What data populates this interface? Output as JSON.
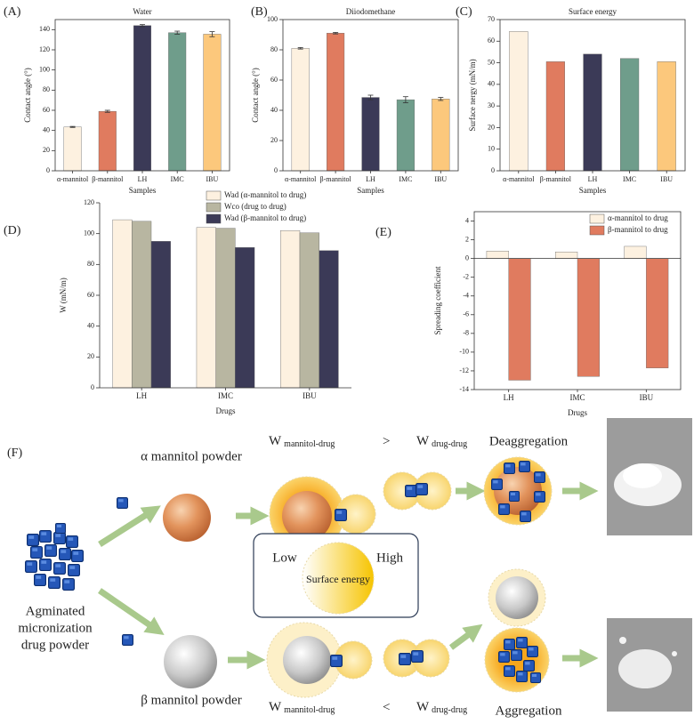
{
  "chart_data": [
    {
      "type": "bar",
      "label": "(A)",
      "title": "Water",
      "y_label": "Contact angle (°)",
      "x_label": "Samples",
      "categories": [
        "α-mannitol",
        "β-mannitol",
        "LH",
        "IMC",
        "IBU"
      ],
      "values": [
        43.5,
        59,
        144,
        137,
        135.5
      ],
      "errors": [
        0.5,
        1,
        1,
        1.5,
        2.5
      ],
      "colors": [
        "#fdf1e0",
        "#e07b5f",
        "#3b3a57",
        "#6f9d8b",
        "#fcc87c"
      ],
      "ylim": [
        0,
        150
      ],
      "yticks": [
        0,
        20,
        40,
        60,
        80,
        100,
        120,
        140
      ]
    },
    {
      "type": "bar",
      "label": "(B)",
      "title": "Diiodomethane",
      "y_label": "Contact angle (°)",
      "x_label": "Samples",
      "categories": [
        "α-mannitol",
        "β-mannitol",
        "LH",
        "IMC",
        "IBU"
      ],
      "values": [
        81,
        91,
        48.5,
        47,
        47.5
      ],
      "errors": [
        0.5,
        0.5,
        1.5,
        2,
        1
      ],
      "colors": [
        "#fdf1e0",
        "#e07b5f",
        "#3b3a57",
        "#6f9d8b",
        "#fcc87c"
      ],
      "ylim": [
        0,
        100
      ],
      "yticks": [
        0,
        20,
        40,
        60,
        80,
        100
      ]
    },
    {
      "type": "bar",
      "label": "(C)",
      "title": "Surface energy",
      "y_label": "Surface nergy (mN/m)",
      "x_label": "Samples",
      "categories": [
        "α-mannitol",
        "β-mannitol",
        "LH",
        "IMC",
        "IBU"
      ],
      "values": [
        64.5,
        50.5,
        54,
        52,
        50.5
      ],
      "colors": [
        "#fdf1e0",
        "#e07b5f",
        "#3b3a57",
        "#6f9d8b",
        "#fcc87c"
      ],
      "ylim": [
        0,
        70
      ],
      "yticks": [
        0,
        10,
        20,
        30,
        40,
        50,
        60,
        70
      ]
    },
    {
      "type": "grouped_bar",
      "label": "(D)",
      "y_label": "W (mN/m)",
      "x_label": "Drugs",
      "categories": [
        "LH",
        "IMC",
        "IBU"
      ],
      "series": [
        {
          "name": "Wad (α-mannitol to drug)",
          "color": "#fdf1e0",
          "values": [
            109,
            104,
            102
          ]
        },
        {
          "name": "Wco (drug to drug)",
          "color": "#b8b6a1",
          "values": [
            108,
            103.5,
            100.5
          ]
        },
        {
          "name": "Wad (β-mannitol to drug)",
          "color": "#3b3a57",
          "values": [
            95,
            91,
            89
          ]
        }
      ],
      "ylim": [
        0,
        120
      ],
      "yticks": [
        0,
        20,
        40,
        60,
        80,
        100,
        120
      ],
      "legend": "top"
    },
    {
      "type": "grouped_bar",
      "label": "(E)",
      "y_label": "Spreading coefficient",
      "x_label": "Drugs",
      "categories": [
        "LH",
        "IMC",
        "IBU"
      ],
      "series": [
        {
          "name": "α-mannitol to drug",
          "color": "#fdf1e0",
          "values": [
            0.8,
            0.7,
            1.3
          ]
        },
        {
          "name": "β-mannitol to drug",
          "color": "#e07b5f",
          "values": [
            -13,
            -12.6,
            -11.7
          ]
        }
      ],
      "ylim": [
        -14,
        5
      ],
      "yticks": [
        -14,
        -12,
        -10,
        -8,
        -6,
        -4,
        -2,
        0,
        2,
        4
      ],
      "legend": "upper right"
    }
  ],
  "figure": {
    "label": "(F)",
    "alpha_powder": "α mannitol powder",
    "beta_powder": "β mannitol powder",
    "drug_powder": [
      "Agminated",
      "micronization",
      "drug powder"
    ],
    "top_relation": {
      "w1": "W",
      "s1": "mannitol-drug",
      "op": ">",
      "w2": "W",
      "s2": "drug-drug"
    },
    "bottom_relation": {
      "w1": "W",
      "s1": "mannitol-drug",
      "op": "<",
      "w2": "W",
      "s2": "drug-drug"
    },
    "deaggregation": "Deaggregation",
    "aggregation": "Aggregation",
    "legend": {
      "low": "Low",
      "high": "High",
      "center": "Surface energy"
    }
  }
}
